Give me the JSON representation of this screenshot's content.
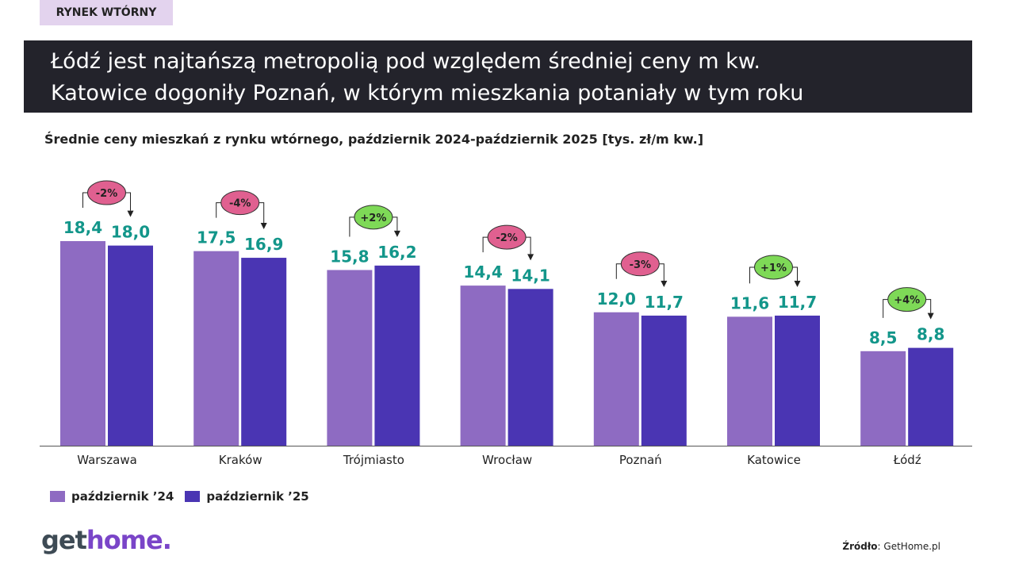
{
  "tag": "RYNEK WTÓRNY",
  "headline": [
    "Łódź jest najtańszą metropolią pod względem średniej ceny m kw.",
    "Katowice dogoniły Poznań, w którym mieszkania potaniały w tym roku"
  ],
  "colors": {
    "oct24": "#8e6bc2",
    "oct25": "#4a35b3",
    "value_label": "#13968a",
    "badge_down": "#e06090",
    "badge_up": "#7ed957"
  },
  "chart_data": {
    "type": "bar",
    "title": "Średnie ceny mieszkań z rynku wtórnego, październik 2024-październik 2025 [tys. zł/m kw.]",
    "categories": [
      "Warszawa",
      "Kraków",
      "Trójmiasto",
      "Wrocław",
      "Poznań",
      "Katowice",
      "Łódź"
    ],
    "series": [
      {
        "name": "październik ’24",
        "values": [
          18.4,
          17.5,
          15.8,
          14.4,
          12.0,
          11.6,
          8.5
        ],
        "labels": [
          "18,4",
          "17,5",
          "15,8",
          "14,4",
          "12,0",
          "11,6",
          "8,5"
        ]
      },
      {
        "name": "październik ’25",
        "values": [
          18.0,
          16.9,
          16.2,
          14.1,
          11.7,
          11.7,
          8.8
        ],
        "labels": [
          "18,0",
          "16,9",
          "16,2",
          "14,1",
          "11,7",
          "11,7",
          "8,8"
        ]
      }
    ],
    "changes": [
      "-2%",
      "-4%",
      "+2%",
      "-2%",
      "-3%",
      "+1%",
      "+4%"
    ],
    "ylim": [
      0,
      20
    ],
    "grid": false,
    "legend": "bottom-left"
  },
  "footer": {
    "logo_get": "get",
    "logo_home": "home.",
    "source_label": "Źródło",
    "source_value": ": GetHome.pl"
  }
}
